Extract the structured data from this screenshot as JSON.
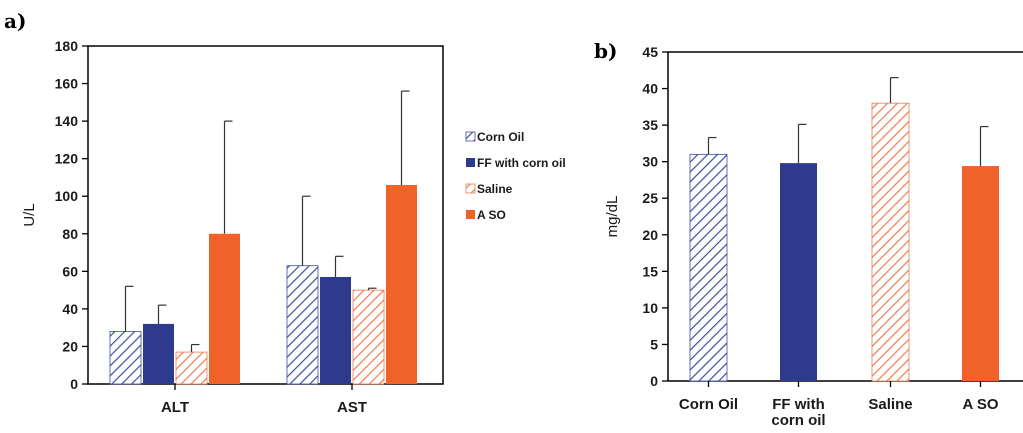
{
  "colors": {
    "corn_oil": "#3c4fa0",
    "ff_with_corn_oil": "#2e3a8c",
    "saline": "#ee7b4e",
    "aso": "#f0622a"
  },
  "chart_data": [
    {
      "type": "bar",
      "panel_label": "a)",
      "ylabel": "U/L",
      "ylim": [
        0,
        180
      ],
      "yticks": [
        "0",
        "20",
        "40",
        "60",
        "80",
        "100",
        "120",
        "140",
        "160",
        "180"
      ],
      "categories": [
        "ALT",
        "AST"
      ],
      "legend_position": "right",
      "series": [
        {
          "name": "Corn Oil",
          "style": "hatch",
          "color": "#3c4fa0",
          "values": [
            28,
            63
          ],
          "errors": [
            24,
            37
          ]
        },
        {
          "name": "FF with corn oil",
          "style": "solid",
          "color": "#2e3a8c",
          "values": [
            32,
            57
          ],
          "errors": [
            10,
            11
          ]
        },
        {
          "name": "Saline",
          "style": "hatch",
          "color": "#ee7b4e",
          "values": [
            17,
            50
          ],
          "errors": [
            4,
            1
          ]
        },
        {
          "name": "A SO",
          "style": "solid",
          "color": "#f0622a",
          "values": [
            80,
            106
          ],
          "errors": [
            60,
            50
          ]
        }
      ]
    },
    {
      "type": "bar",
      "panel_label": "b)",
      "ylabel": "mg/dL",
      "ylim": [
        0,
        45
      ],
      "yticks": [
        "0",
        "5",
        "10",
        "15",
        "20",
        "25",
        "30",
        "35",
        "40",
        "45"
      ],
      "categories": [
        "Corn Oil",
        "FF with corn oil",
        "Saline",
        "A SO"
      ],
      "bars": [
        {
          "value": 31,
          "error": 2.3,
          "style": "hatch",
          "color": "#3c4fa0"
        },
        {
          "value": 29.8,
          "error": 5.3,
          "style": "solid",
          "color": "#2e3a8c"
        },
        {
          "value": 38,
          "error": 3.5,
          "style": "hatch",
          "color": "#ee7b4e"
        },
        {
          "value": 29.4,
          "error": 5.4,
          "style": "solid",
          "color": "#f0622a"
        }
      ]
    }
  ]
}
